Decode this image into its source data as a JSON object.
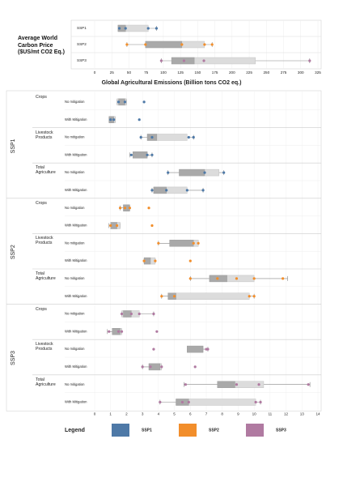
{
  "chart_data": [
    {
      "type": "box",
      "title": "Average World Carbon Price ($US/mt CO2 Eq.)",
      "categories": [
        "SSP1",
        "SSP2",
        "SSP3"
      ],
      "colors": [
        "#4e79a7",
        "#f28e2b",
        "#b07aa1"
      ],
      "boxes": [
        {
          "min": 36,
          "max": 90,
          "light": [
            34,
            78
          ],
          "dark": [
            34,
            45
          ],
          "points": [
            36,
            45,
            78,
            90
          ]
        },
        {
          "min": 47,
          "max": 171,
          "light": [
            74,
            160
          ],
          "dark": [
            74,
            127
          ],
          "points": [
            47,
            74,
            127,
            160,
            171
          ]
        },
        {
          "min": 97,
          "max": 313,
          "light": [
            112,
            234
          ],
          "dark": [
            112,
            145
          ],
          "points": [
            97,
            130,
            159,
            313
          ]
        }
      ],
      "xlim": [
        0,
        325
      ],
      "xticks": [
        0,
        25,
        50,
        75,
        100,
        125,
        150,
        175,
        200,
        225,
        250,
        275,
        300,
        325
      ],
      "grid": true
    },
    {
      "type": "grouped-box",
      "title": "Global Agricultural Emissions (Billion tons CO2 eq.)",
      "legend_title": "Legend",
      "series": [
        {
          "name": "SSP1",
          "color": "#4e79a7"
        },
        {
          "name": "SSP2",
          "color": "#f28e2b"
        },
        {
          "name": "SSP3",
          "color": "#b07aa1"
        }
      ],
      "xlim": [
        0,
        14
      ],
      "xticks": [
        0,
        1,
        2,
        3,
        4,
        5,
        6,
        7,
        8,
        9,
        10,
        11,
        12,
        13,
        14
      ],
      "grid": true,
      "groups": [
        {
          "name": "SSP1",
          "sectors": [
            {
              "name": "Crops",
              "rows": [
                {
                  "name": "No mitigation",
                  "min": 1.4,
                  "max": 2.0,
                  "light": [
                    1.4,
                    2.0
                  ],
                  "dark": [
                    1.5,
                    1.9
                  ],
                  "points": [
                    1.5,
                    1.9,
                    3.1
                  ]
                },
                {
                  "name": "With Mitigation",
                  "min": 0.9,
                  "max": 1.3,
                  "light": [
                    0.9,
                    1.3
                  ],
                  "dark": [
                    0.9,
                    1.2
                  ],
                  "points": [
                    1.0,
                    1.2,
                    2.8
                  ]
                }
              ]
            },
            {
              "name": "Livestock Products",
              "rows": [
                {
                  "name": "No mitigation",
                  "min": 2.9,
                  "max": 6.2,
                  "light": [
                    3.3,
                    5.8
                  ],
                  "dark": [
                    3.3,
                    3.9
                  ],
                  "points": [
                    2.9,
                    3.6,
                    5.9,
                    6.2
                  ]
                },
                {
                  "name": "With Mitigation",
                  "min": 2.2,
                  "max": 3.6,
                  "light": [
                    2.4,
                    3.3
                  ],
                  "dark": [
                    2.4,
                    3.3
                  ],
                  "points": [
                    2.3,
                    3.3,
                    3.6
                  ]
                }
              ]
            },
            {
              "name": "Total Agriculture",
              "rows": [
                {
                  "name": "No mitigation",
                  "min": 4.6,
                  "max": 8.1,
                  "light": [
                    5.3,
                    7.8
                  ],
                  "dark": [
                    5.3,
                    6.9
                  ],
                  "points": [
                    4.6,
                    6.9,
                    8.1
                  ]
                },
                {
                  "name": "With Mitigation",
                  "min": 3.6,
                  "max": 6.8,
                  "light": [
                    3.7,
                    5.8
                  ],
                  "dark": [
                    3.7,
                    4.5
                  ],
                  "points": [
                    3.6,
                    4.5,
                    5.8,
                    6.8
                  ]
                }
              ]
            }
          ]
        },
        {
          "name": "SSP2",
          "sectors": [
            {
              "name": "Crops",
              "rows": [
                {
                  "name": "No mitigation",
                  "min": 1.6,
                  "max": 2.2,
                  "light": [
                    1.8,
                    2.2
                  ],
                  "dark": [
                    1.8,
                    2.2
                  ],
                  "points": [
                    1.6,
                    1.9,
                    2.2,
                    3.4
                  ]
                },
                {
                  "name": "With Mitigation",
                  "min": 0.9,
                  "max": 1.6,
                  "light": [
                    1.0,
                    1.6
                  ],
                  "dark": [
                    1.0,
                    1.4
                  ],
                  "points": [
                    1.0,
                    1.4,
                    3.6
                  ]
                }
              ]
            },
            {
              "name": "Livestock Products",
              "rows": [
                {
                  "name": "No mitigation",
                  "min": 4.0,
                  "max": 6.5,
                  "light": [
                    4.7,
                    6.5
                  ],
                  "dark": [
                    4.7,
                    6.2
                  ],
                  "points": [
                    4.0,
                    6.2,
                    6.5
                  ]
                },
                {
                  "name": "With Mitigation",
                  "min": 3.1,
                  "max": 3.8,
                  "light": [
                    3.1,
                    3.8
                  ],
                  "dark": [
                    3.1,
                    3.5
                  ],
                  "points": [
                    3.1,
                    3.8,
                    6.0
                  ]
                }
              ]
            },
            {
              "name": "Total Agriculture",
              "rows": [
                {
                  "name": "No mitigation",
                  "min": 6.0,
                  "max": 12.1,
                  "light": [
                    7.2,
                    10.0
                  ],
                  "dark": [
                    7.2,
                    8.3
                  ],
                  "points": [
                    6.0,
                    7.7,
                    8.9,
                    10.0,
                    11.8
                  ]
                },
                {
                  "name": "With Mitigation",
                  "min": 4.2,
                  "max": 10.0,
                  "light": [
                    4.6,
                    9.7
                  ],
                  "dark": [
                    4.6,
                    5.1
                  ],
                  "points": [
                    4.2,
                    5.0,
                    9.7,
                    10.0
                  ]
                }
              ]
            }
          ]
        },
        {
          "name": "SSP3",
          "sectors": [
            {
              "name": "Crops",
              "rows": [
                {
                  "name": "No mitigation",
                  "min": 1.7,
                  "max": 3.7,
                  "light": [
                    1.7,
                    2.8
                  ],
                  "dark": [
                    1.8,
                    2.3
                  ],
                  "points": [
                    1.7,
                    2.3,
                    2.8,
                    3.7
                  ]
                },
                {
                  "name": "With Mitigation",
                  "min": 0.8,
                  "max": 1.7,
                  "light": [
                    1.1,
                    1.7
                  ],
                  "dark": [
                    1.1,
                    1.6
                  ],
                  "points": [
                    0.9,
                    1.5,
                    1.7,
                    3.9
                  ]
                }
              ]
            },
            {
              "name": "Livestock Products",
              "rows": [
                {
                  "name": "No mitigation",
                  "min": 5.8,
                  "max": 7.1,
                  "light": [
                    5.8,
                    6.8
                  ],
                  "dark": [
                    5.8,
                    6.8
                  ],
                  "points": [
                    3.7,
                    7.0,
                    7.1
                  ]
                },
                {
                  "name": "With Mitigation",
                  "min": 3.0,
                  "max": 4.2,
                  "light": [
                    3.4,
                    4.2
                  ],
                  "dark": [
                    3.4,
                    4.1
                  ],
                  "points": [
                    3.0,
                    3.5,
                    4.2,
                    6.3
                  ]
                }
              ]
            },
            {
              "name": "Total Agriculture",
              "rows": [
                {
                  "name": "No mitigation",
                  "min": 5.6,
                  "max": 13.5,
                  "light": [
                    7.7,
                    10.6
                  ],
                  "dark": [
                    7.7,
                    8.8
                  ],
                  "points": [
                    5.7,
                    8.9,
                    10.3,
                    13.4
                  ]
                },
                {
                  "name": "With Mitigation",
                  "min": 4.1,
                  "max": 10.4,
                  "light": [
                    5.1,
                    10.1
                  ],
                  "dark": [
                    5.1,
                    5.9
                  ],
                  "points": [
                    4.1,
                    5.5,
                    5.9,
                    10.1,
                    10.4
                  ]
                }
              ]
            }
          ]
        }
      ]
    }
  ]
}
